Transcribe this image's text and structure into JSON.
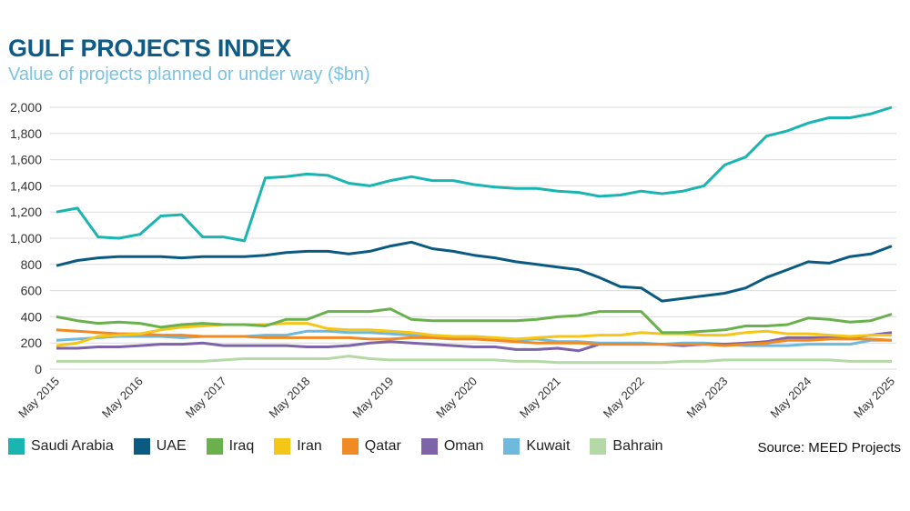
{
  "chart_data": {
    "type": "line",
    "title": "GULF PROJECTS INDEX",
    "subtitle": "Value of projects planned or under way ($bn)",
    "source": "Source: MEED Projects",
    "ylim": [
      0,
      2000
    ],
    "yticks": [
      0,
      200,
      400,
      600,
      800,
      1000,
      1200,
      1400,
      1600,
      1800,
      2000
    ],
    "ytick_labels": [
      "0",
      "200",
      "400",
      "600",
      "800",
      "1,000",
      "1,200",
      "1,400",
      "1,600",
      "1,800",
      "2,000"
    ],
    "xtick_labels": [
      "May 2015",
      "May 2016",
      "May 2017",
      "May 2018",
      "May 2019",
      "May 2020",
      "May 2021",
      "May 2022",
      "May 2023",
      "May 2024",
      "May 2025"
    ],
    "grid": "horizontal",
    "legend_placement": "bottom",
    "x": [
      "2015-05",
      "2015-08",
      "2015-11",
      "2016-02",
      "2016-05",
      "2016-08",
      "2016-11",
      "2017-02",
      "2017-05",
      "2017-08",
      "2017-11",
      "2018-02",
      "2018-05",
      "2018-08",
      "2018-11",
      "2019-02",
      "2019-05",
      "2019-08",
      "2019-11",
      "2020-02",
      "2020-05",
      "2020-08",
      "2020-11",
      "2021-02",
      "2021-05",
      "2021-08",
      "2021-11",
      "2022-02",
      "2022-05",
      "2022-08",
      "2022-11",
      "2023-02",
      "2023-05",
      "2023-08",
      "2023-11",
      "2024-02",
      "2024-05",
      "2024-08",
      "2024-11",
      "2025-02",
      "2025-05"
    ],
    "series": [
      {
        "name": "Saudi Arabia",
        "color": "#1ab5b0",
        "values": [
          1200,
          1230,
          1010,
          1000,
          1030,
          1170,
          1180,
          1010,
          1010,
          980,
          1460,
          1470,
          1490,
          1480,
          1420,
          1400,
          1440,
          1470,
          1440,
          1440,
          1410,
          1390,
          1380,
          1380,
          1360,
          1350,
          1320,
          1330,
          1360,
          1340,
          1360,
          1400,
          1560,
          1620,
          1780,
          1820,
          1880,
          1920,
          1920,
          1950,
          2000
        ]
      },
      {
        "name": "UAE",
        "color": "#0b5a82",
        "values": [
          790,
          830,
          850,
          860,
          860,
          860,
          850,
          860,
          860,
          860,
          870,
          890,
          900,
          900,
          880,
          900,
          940,
          970,
          920,
          900,
          870,
          850,
          820,
          800,
          780,
          760,
          700,
          630,
          620,
          520,
          540,
          560,
          580,
          620,
          700,
          760,
          820,
          810,
          860,
          880,
          940
        ]
      },
      {
        "name": "Iraq",
        "color": "#6ab04c",
        "values": [
          400,
          370,
          350,
          360,
          350,
          320,
          340,
          350,
          340,
          340,
          330,
          380,
          380,
          440,
          440,
          440,
          460,
          380,
          370,
          370,
          370,
          370,
          370,
          380,
          400,
          410,
          440,
          440,
          440,
          280,
          280,
          290,
          300,
          330,
          330,
          340,
          390,
          380,
          360,
          370,
          420
        ]
      },
      {
        "name": "Iran",
        "color": "#f5c518",
        "values": [
          180,
          200,
          250,
          260,
          270,
          300,
          320,
          330,
          340,
          340,
          340,
          350,
          350,
          310,
          300,
          300,
          290,
          280,
          260,
          250,
          250,
          240,
          230,
          240,
          250,
          250,
          260,
          260,
          280,
          270,
          270,
          260,
          260,
          280,
          290,
          270,
          270,
          260,
          250,
          260,
          260
        ]
      },
      {
        "name": "Qatar",
        "color": "#ef8a24",
        "values": [
          300,
          290,
          280,
          270,
          270,
          260,
          260,
          250,
          250,
          250,
          240,
          240,
          240,
          240,
          240,
          230,
          230,
          240,
          240,
          230,
          230,
          220,
          210,
          200,
          200,
          200,
          190,
          190,
          190,
          190,
          190,
          190,
          180,
          190,
          200,
          220,
          220,
          230,
          230,
          230,
          220
        ]
      },
      {
        "name": "Oman",
        "color": "#7d63a8",
        "values": [
          160,
          160,
          170,
          170,
          180,
          190,
          190,
          200,
          180,
          180,
          180,
          180,
          170,
          170,
          180,
          200,
          210,
          200,
          190,
          180,
          170,
          170,
          150,
          150,
          160,
          140,
          190,
          190,
          190,
          190,
          180,
          190,
          190,
          200,
          210,
          240,
          240,
          240,
          240,
          260,
          280
        ]
      },
      {
        "name": "Kuwait",
        "color": "#6fb9dc",
        "values": [
          220,
          230,
          240,
          250,
          250,
          250,
          240,
          250,
          250,
          250,
          260,
          260,
          290,
          290,
          280,
          280,
          270,
          260,
          250,
          240,
          230,
          240,
          220,
          230,
          210,
          210,
          200,
          200,
          200,
          190,
          200,
          200,
          190,
          180,
          180,
          180,
          190,
          190,
          190,
          220,
          220
        ]
      },
      {
        "name": "Bahrain",
        "color": "#b5d9a6",
        "values": [
          60,
          60,
          60,
          60,
          60,
          60,
          60,
          60,
          70,
          80,
          80,
          80,
          80,
          80,
          100,
          80,
          70,
          70,
          70,
          70,
          70,
          70,
          60,
          60,
          50,
          50,
          50,
          50,
          50,
          50,
          60,
          60,
          70,
          70,
          70,
          70,
          70,
          70,
          60,
          60,
          60
        ]
      }
    ]
  }
}
